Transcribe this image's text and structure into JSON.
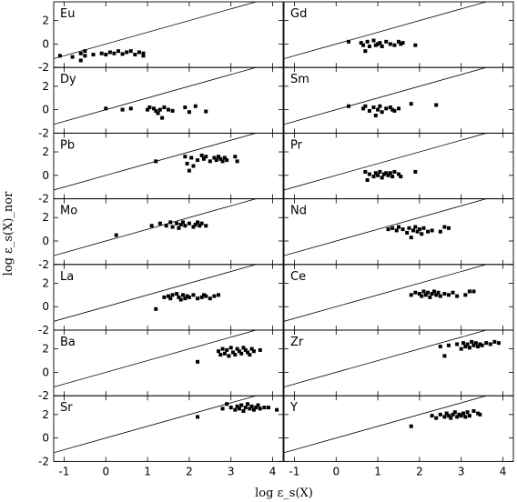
{
  "chart_data": {
    "type": "scatter",
    "xlabel": "log ε_s(X)",
    "ylabel": "log ε_s(X)_nor",
    "xlim": [
      -1.25,
      4.25
    ],
    "ylim": [
      -2.0,
      3.6
    ],
    "x_ticks": [
      "-1",
      "0",
      "1",
      "2",
      "3",
      "4"
    ],
    "y_ticks": [
      "-2",
      "0",
      "2"
    ],
    "panels": [
      {
        "element": "Eu",
        "points": [
          [
            -1.1,
            -1.0
          ],
          [
            -0.8,
            -1.1
          ],
          [
            -0.6,
            -1.4
          ],
          [
            -0.6,
            -0.8
          ],
          [
            -0.5,
            -0.6
          ],
          [
            -0.5,
            -1.0
          ],
          [
            -0.3,
            -0.9
          ],
          [
            -0.1,
            -0.8
          ],
          [
            0.0,
            -0.9
          ],
          [
            0.1,
            -0.7
          ],
          [
            0.2,
            -0.8
          ],
          [
            0.3,
            -0.6
          ],
          [
            0.5,
            -0.7
          ],
          [
            0.6,
            -0.6
          ],
          [
            0.7,
            -0.9
          ],
          [
            0.8,
            -0.7
          ],
          [
            0.9,
            -0.8
          ],
          [
            0.9,
            -1.0
          ],
          [
            0.4,
            -0.85
          ]
        ]
      },
      {
        "element": "Gd",
        "points": [
          [
            0.3,
            0.2
          ],
          [
            0.6,
            0.1
          ],
          [
            0.65,
            -0.1
          ],
          [
            0.7,
            -0.6
          ],
          [
            0.75,
            0.2
          ],
          [
            0.8,
            -0.2
          ],
          [
            0.9,
            0.3
          ],
          [
            0.95,
            -0.1
          ],
          [
            1.0,
            0.0
          ],
          [
            1.05,
            0.1
          ],
          [
            1.1,
            -0.2
          ],
          [
            1.2,
            0.2
          ],
          [
            1.3,
            0.0
          ],
          [
            1.4,
            -0.1
          ],
          [
            1.5,
            0.2
          ],
          [
            1.55,
            0.0
          ],
          [
            1.6,
            0.1
          ],
          [
            1.9,
            -0.1
          ]
        ]
      },
      {
        "element": "Dy",
        "points": [
          [
            0.0,
            0.1
          ],
          [
            0.4,
            0.0
          ],
          [
            0.6,
            0.1
          ],
          [
            1.0,
            0.0
          ],
          [
            1.05,
            0.2
          ],
          [
            1.15,
            0.1
          ],
          [
            1.2,
            -0.1
          ],
          [
            1.25,
            -0.3
          ],
          [
            1.3,
            0.0
          ],
          [
            1.35,
            -0.7
          ],
          [
            1.4,
            0.2
          ],
          [
            1.5,
            0.0
          ],
          [
            1.6,
            -0.1
          ],
          [
            1.9,
            0.2
          ],
          [
            2.0,
            -0.2
          ],
          [
            2.15,
            0.3
          ],
          [
            2.4,
            -0.15
          ]
        ]
      },
      {
        "element": "Sm",
        "points": [
          [
            0.3,
            0.3
          ],
          [
            0.65,
            0.1
          ],
          [
            0.7,
            0.3
          ],
          [
            0.8,
            -0.1
          ],
          [
            0.9,
            0.2
          ],
          [
            0.95,
            -0.5
          ],
          [
            1.0,
            0.0
          ],
          [
            1.05,
            0.3
          ],
          [
            1.1,
            -0.2
          ],
          [
            1.2,
            0.1
          ],
          [
            1.3,
            0.2
          ],
          [
            1.35,
            0.0
          ],
          [
            1.4,
            -0.1
          ],
          [
            1.5,
            0.1
          ],
          [
            1.8,
            0.5
          ],
          [
            2.4,
            0.4
          ]
        ]
      },
      {
        "element": "Pb",
        "points": [
          [
            1.2,
            1.2
          ],
          [
            1.9,
            1.6
          ],
          [
            1.95,
            1.0
          ],
          [
            2.0,
            0.4
          ],
          [
            2.05,
            1.5
          ],
          [
            2.1,
            0.8
          ],
          [
            2.2,
            1.3
          ],
          [
            2.3,
            1.7
          ],
          [
            2.35,
            1.4
          ],
          [
            2.4,
            1.6
          ],
          [
            2.5,
            1.2
          ],
          [
            2.6,
            1.5
          ],
          [
            2.65,
            1.3
          ],
          [
            2.7,
            1.6
          ],
          [
            2.75,
            1.4
          ],
          [
            2.8,
            1.2
          ],
          [
            2.85,
            1.5
          ],
          [
            2.9,
            1.3
          ],
          [
            3.1,
            1.6
          ],
          [
            3.15,
            1.2
          ]
        ]
      },
      {
        "element": "Pr",
        "points": [
          [
            0.7,
            0.3
          ],
          [
            0.75,
            -0.4
          ],
          [
            0.8,
            0.1
          ],
          [
            0.9,
            -0.1
          ],
          [
            0.95,
            0.2
          ],
          [
            1.0,
            0.0
          ],
          [
            1.05,
            0.3
          ],
          [
            1.1,
            -0.2
          ],
          [
            1.15,
            0.1
          ],
          [
            1.2,
            0.2
          ],
          [
            1.25,
            0.0
          ],
          [
            1.3,
            0.2
          ],
          [
            1.35,
            -0.1
          ],
          [
            1.4,
            0.3
          ],
          [
            1.5,
            0.1
          ],
          [
            1.55,
            -0.1
          ],
          [
            1.9,
            0.3
          ]
        ]
      },
      {
        "element": "Mo",
        "points": [
          [
            0.25,
            0.5
          ],
          [
            1.1,
            1.3
          ],
          [
            1.3,
            1.5
          ],
          [
            1.45,
            1.3
          ],
          [
            1.55,
            1.6
          ],
          [
            1.6,
            1.2
          ],
          [
            1.7,
            1.5
          ],
          [
            1.75,
            1.1
          ],
          [
            1.8,
            1.4
          ],
          [
            1.85,
            1.6
          ],
          [
            1.9,
            1.3
          ],
          [
            2.0,
            1.5
          ],
          [
            2.1,
            1.2
          ],
          [
            2.15,
            1.4
          ],
          [
            2.2,
            1.6
          ],
          [
            2.25,
            1.3
          ],
          [
            2.3,
            1.5
          ],
          [
            2.4,
            1.3
          ]
        ]
      },
      {
        "element": "Nd",
        "points": [
          [
            1.25,
            1.0
          ],
          [
            1.35,
            1.1
          ],
          [
            1.45,
            0.9
          ],
          [
            1.5,
            1.2
          ],
          [
            1.6,
            1.0
          ],
          [
            1.7,
            0.7
          ],
          [
            1.75,
            1.1
          ],
          [
            1.8,
            0.3
          ],
          [
            1.85,
            0.9
          ],
          [
            1.9,
            1.2
          ],
          [
            1.95,
            0.8
          ],
          [
            2.0,
            1.0
          ],
          [
            2.05,
            0.6
          ],
          [
            2.1,
            1.1
          ],
          [
            2.2,
            0.8
          ],
          [
            2.3,
            0.9
          ],
          [
            2.5,
            0.8
          ],
          [
            2.6,
            1.2
          ],
          [
            2.7,
            1.1
          ]
        ]
      },
      {
        "element": "La",
        "points": [
          [
            1.2,
            -0.2
          ],
          [
            1.4,
            0.8
          ],
          [
            1.5,
            0.9
          ],
          [
            1.55,
            0.7
          ],
          [
            1.6,
            1.0
          ],
          [
            1.7,
            1.1
          ],
          [
            1.75,
            0.8
          ],
          [
            1.8,
            0.6
          ],
          [
            1.85,
            1.0
          ],
          [
            1.9,
            0.7
          ],
          [
            1.95,
            0.9
          ],
          [
            2.0,
            0.8
          ],
          [
            2.1,
            1.0
          ],
          [
            2.2,
            0.7
          ],
          [
            2.3,
            0.8
          ],
          [
            2.35,
            1.0
          ],
          [
            2.4,
            0.9
          ],
          [
            2.5,
            0.7
          ],
          [
            2.6,
            0.9
          ],
          [
            2.7,
            1.0
          ]
        ]
      },
      {
        "element": "Ce",
        "points": [
          [
            1.8,
            1.0
          ],
          [
            1.9,
            1.2
          ],
          [
            2.0,
            1.1
          ],
          [
            2.05,
            0.9
          ],
          [
            2.1,
            1.3
          ],
          [
            2.15,
            1.0
          ],
          [
            2.2,
            1.2
          ],
          [
            2.25,
            0.8
          ],
          [
            2.3,
            1.1
          ],
          [
            2.35,
            1.3
          ],
          [
            2.4,
            1.0
          ],
          [
            2.45,
            1.2
          ],
          [
            2.5,
            0.9
          ],
          [
            2.6,
            1.1
          ],
          [
            2.7,
            1.0
          ],
          [
            2.8,
            1.2
          ],
          [
            2.9,
            0.9
          ],
          [
            3.1,
            1.0
          ],
          [
            3.2,
            1.3
          ],
          [
            3.3,
            1.3
          ]
        ]
      },
      {
        "element": "Ba",
        "points": [
          [
            2.2,
            0.9
          ],
          [
            2.7,
            1.8
          ],
          [
            2.75,
            1.5
          ],
          [
            2.8,
            2.0
          ],
          [
            2.85,
            1.6
          ],
          [
            2.9,
            1.9
          ],
          [
            2.95,
            1.4
          ],
          [
            3.0,
            2.1
          ],
          [
            3.05,
            1.7
          ],
          [
            3.1,
            1.5
          ],
          [
            3.15,
            2.0
          ],
          [
            3.2,
            1.8
          ],
          [
            3.25,
            1.6
          ],
          [
            3.3,
            2.1
          ],
          [
            3.35,
            1.9
          ],
          [
            3.4,
            1.7
          ],
          [
            3.45,
            1.5
          ],
          [
            3.5,
            2.0
          ],
          [
            3.55,
            1.8
          ],
          [
            3.7,
            1.9
          ]
        ]
      },
      {
        "element": "Zr",
        "points": [
          [
            2.5,
            2.2
          ],
          [
            2.6,
            1.4
          ],
          [
            2.7,
            2.3
          ],
          [
            2.9,
            2.4
          ],
          [
            3.0,
            2.0
          ],
          [
            3.05,
            2.5
          ],
          [
            3.1,
            2.2
          ],
          [
            3.15,
            2.4
          ],
          [
            3.2,
            2.1
          ],
          [
            3.25,
            2.6
          ],
          [
            3.3,
            2.3
          ],
          [
            3.35,
            2.5
          ],
          [
            3.4,
            2.2
          ],
          [
            3.45,
            2.4
          ],
          [
            3.5,
            2.3
          ],
          [
            3.6,
            2.5
          ],
          [
            3.7,
            2.4
          ],
          [
            3.8,
            2.6
          ],
          [
            3.9,
            2.5
          ]
        ]
      },
      {
        "element": "Sr",
        "points": [
          [
            2.2,
            1.8
          ],
          [
            2.8,
            2.5
          ],
          [
            2.9,
            2.9
          ],
          [
            3.0,
            2.6
          ],
          [
            3.1,
            2.4
          ],
          [
            3.15,
            2.7
          ],
          [
            3.2,
            2.5
          ],
          [
            3.25,
            2.8
          ],
          [
            3.3,
            2.3
          ],
          [
            3.35,
            2.6
          ],
          [
            3.4,
            2.9
          ],
          [
            3.45,
            2.5
          ],
          [
            3.5,
            2.7
          ],
          [
            3.55,
            2.4
          ],
          [
            3.6,
            2.6
          ],
          [
            3.65,
            2.8
          ],
          [
            3.7,
            2.5
          ],
          [
            3.8,
            2.6
          ],
          [
            3.9,
            2.6
          ],
          [
            4.1,
            2.4
          ]
        ]
      },
      {
        "element": "Y",
        "points": [
          [
            1.8,
            1.0
          ],
          [
            2.3,
            1.9
          ],
          [
            2.4,
            1.7
          ],
          [
            2.5,
            2.0
          ],
          [
            2.6,
            1.8
          ],
          [
            2.65,
            2.1
          ],
          [
            2.7,
            1.9
          ],
          [
            2.75,
            1.7
          ],
          [
            2.8,
            2.0
          ],
          [
            2.85,
            2.2
          ],
          [
            2.9,
            1.8
          ],
          [
            2.95,
            2.0
          ],
          [
            3.0,
            1.9
          ],
          [
            3.05,
            2.1
          ],
          [
            3.1,
            1.8
          ],
          [
            3.15,
            2.2
          ],
          [
            3.2,
            1.9
          ],
          [
            3.3,
            2.3
          ],
          [
            3.4,
            2.1
          ],
          [
            3.45,
            2.0
          ]
        ]
      }
    ]
  }
}
